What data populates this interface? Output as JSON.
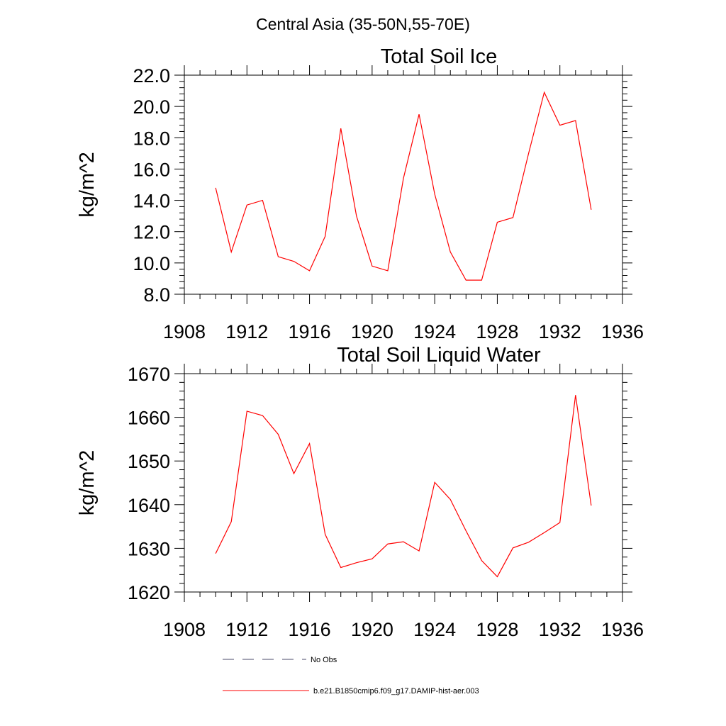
{
  "suptitle": "Central Asia (35-50N,55-70E)",
  "colors": {
    "series": "#ff0000",
    "frame": "#000000",
    "legend_dash": "#4a4a6a"
  },
  "legend": {
    "items": [
      {
        "label": "No Obs",
        "style": "dashed"
      },
      {
        "label": "b.e21.B1850cmip6.f09_g17.DAMIP-hist-aer.003",
        "style": "solid"
      }
    ]
  },
  "chart_data": [
    {
      "type": "line",
      "title": "Total Soil Ice",
      "ylabel": "kg/m^2",
      "xlabel": "",
      "xlim": [
        1908,
        1936
      ],
      "ylim": [
        8,
        22
      ],
      "xticks": [
        1908,
        1912,
        1916,
        1920,
        1924,
        1928,
        1932,
        1936
      ],
      "xtick_labels": [
        "1908",
        "1912",
        "1916",
        "1920",
        "1924",
        "1928",
        "1932",
        "1936"
      ],
      "yticks": [
        8,
        10,
        12,
        14,
        16,
        18,
        20,
        22
      ],
      "ytick_labels": [
        "8.0",
        "10.0",
        "12.0",
        "14.0",
        "16.0",
        "18.0",
        "20.0",
        "22.0"
      ],
      "series": [
        {
          "x": [
            1910,
            1911,
            1912,
            1913,
            1914,
            1915,
            1916,
            1917,
            1918,
            1919,
            1920,
            1921,
            1922,
            1923,
            1924,
            1925,
            1926,
            1927,
            1928,
            1929,
            1930,
            1931,
            1932,
            1933,
            1934
          ],
          "y": [
            14.8,
            10.7,
            13.7,
            14.0,
            10.4,
            10.1,
            9.5,
            11.7,
            18.6,
            13.0,
            9.8,
            9.5,
            15.4,
            19.5,
            14.4,
            10.7,
            8.9,
            8.9,
            12.6,
            12.9,
            17.0,
            20.9,
            18.8,
            19.1,
            13.4
          ]
        }
      ]
    },
    {
      "type": "line",
      "title": "Total Soil Liquid Water",
      "ylabel": "kg/m^2",
      "xlabel": "",
      "xlim": [
        1908,
        1936
      ],
      "ylim": [
        1620,
        1670
      ],
      "xticks": [
        1908,
        1912,
        1916,
        1920,
        1924,
        1928,
        1932,
        1936
      ],
      "xtick_labels": [
        "1908",
        "1912",
        "1916",
        "1920",
        "1924",
        "1928",
        "1932",
        "1936"
      ],
      "yticks": [
        1620,
        1630,
        1640,
        1650,
        1660,
        1670
      ],
      "ytick_labels": [
        "1620",
        "1630",
        "1640",
        "1650",
        "1660",
        "1670"
      ],
      "series": [
        {
          "x": [
            1910,
            1911,
            1912,
            1913,
            1914,
            1915,
            1916,
            1917,
            1918,
            1919,
            1920,
            1921,
            1922,
            1923,
            1924,
            1925,
            1926,
            1927,
            1928,
            1929,
            1930,
            1931,
            1932,
            1933,
            1934
          ],
          "y": [
            1628.8,
            1636.1,
            1661.4,
            1660.4,
            1656.1,
            1647.1,
            1654.0,
            1633.2,
            1625.6,
            1626.7,
            1627.6,
            1631.0,
            1631.5,
            1629.4,
            1645.1,
            1641.2,
            1634.0,
            1627.2,
            1623.5,
            1630.1,
            1631.4,
            1633.6,
            1635.9,
            1665.1,
            1639.8
          ]
        }
      ]
    }
  ]
}
